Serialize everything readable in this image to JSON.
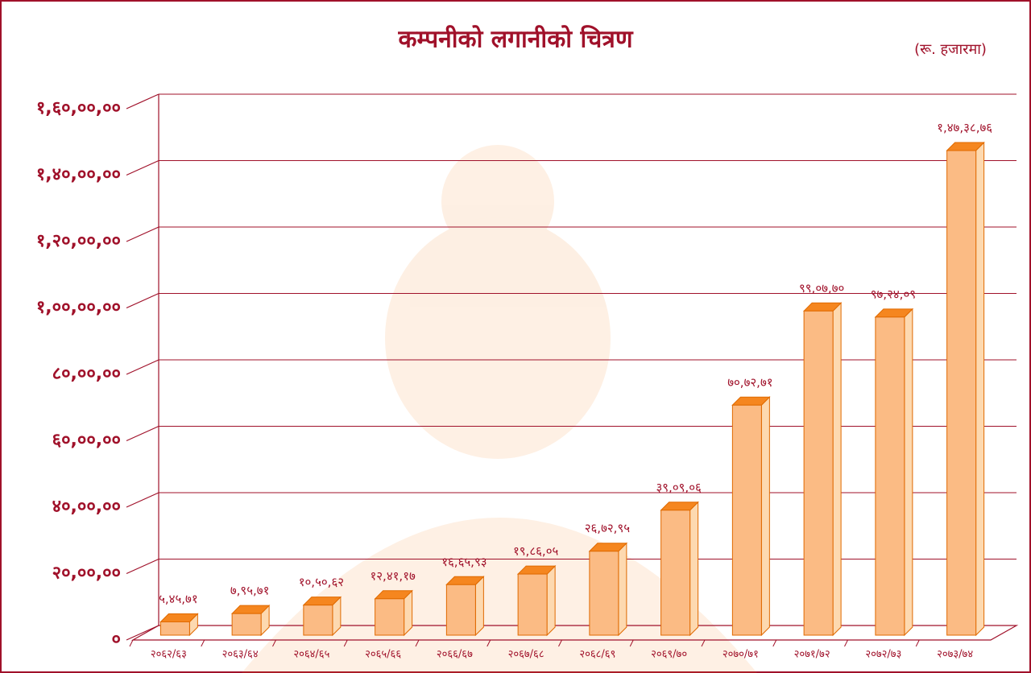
{
  "chart_data": {
    "type": "bar3d",
    "title": "कम्पनीको लगानीको चित्रण",
    "unit_note": "(रू. हजारमा)",
    "categories": [
      "२०६२/६३",
      "२०६३/६४",
      "२०६४/६५",
      "२०६५/६६",
      "२०६६/६७",
      "२०६७/६८",
      "२०६८/६९",
      "२०६९/७०",
      "२०७०/७१",
      "२०७१/७२",
      "२०७२/७३",
      "२०७३/७४"
    ],
    "values": [
      54571,
      79571,
      105062,
      124117,
      166593,
      198605,
      267295,
      390906,
      707271,
      990770,
      972409,
      1473876
    ],
    "value_labels": [
      "५,४५,७१",
      "७,९५,७१",
      "१०,५०,६२",
      "१२,४१,१७",
      "१६,६५,९३",
      "१९,८६,०५",
      "२६,७२,९५",
      "३९,०९,०६",
      "७०,७२,७१",
      "९९,०७,७०",
      "९७,२४,०९",
      "१,४७,३८,७६"
    ],
    "color": "#fbbb84",
    "ylim": [
      0,
      1600000
    ],
    "yticks": [
      {
        "value": 0,
        "label": "०"
      },
      {
        "value": 200000,
        "label": "२०,००,००"
      },
      {
        "value": 400000,
        "label": "४०,००,००"
      },
      {
        "value": 600000,
        "label": "६०,००,००"
      },
      {
        "value": 800000,
        "label": "८०,००,००"
      },
      {
        "value": 1000000,
        "label": "१,००,००,००"
      },
      {
        "value": 1200000,
        "label": "१,२०,००,००"
      },
      {
        "value": 1400000,
        "label": "१,४०,००,००"
      },
      {
        "value": 1600000,
        "label": "१,६०,००,००"
      }
    ],
    "grid": true
  }
}
